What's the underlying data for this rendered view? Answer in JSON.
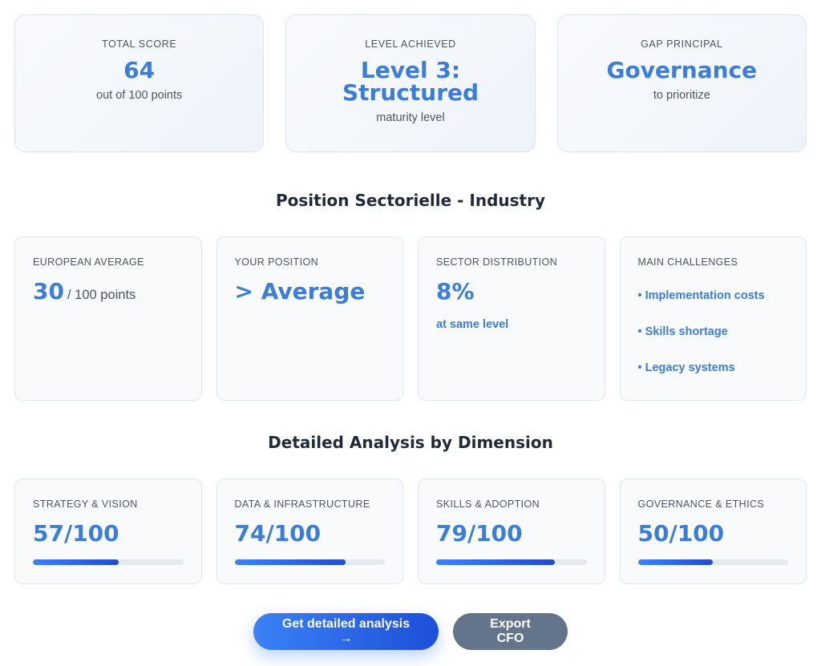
{
  "summary": [
    {
      "label": "TOTAL SCORE",
      "value": "64",
      "sub": "out of 100 points"
    },
    {
      "label": "LEVEL ACHIEVED",
      "value": "Level 3: Structured",
      "sub": "maturity level"
    },
    {
      "label": "GAP PRINCIPAL",
      "value": "Governance",
      "sub": "to prioritize"
    }
  ],
  "sector": {
    "title": "Position Sectorielle - Industry",
    "european_average": {
      "label": "EUROPEAN AVERAGE",
      "value": "30",
      "unit": "/ 100 points"
    },
    "your_position": {
      "label": "YOUR POSITION",
      "value": "> Average"
    },
    "distribution": {
      "label": "SECTOR DISTRIBUTION",
      "value": "8%",
      "note": "at same level"
    },
    "challenges": {
      "label": "MAIN CHALLENGES",
      "items": [
        "• Implementation costs",
        "• Skills shortage",
        "• Legacy systems"
      ]
    }
  },
  "dimensions": {
    "title": "Detailed Analysis by Dimension",
    "items": [
      {
        "label": "STRATEGY & VISION",
        "score_text": "57/100",
        "score": 57
      },
      {
        "label": "DATA & INFRASTRUCTURE",
        "score_text": "74/100",
        "score": 74
      },
      {
        "label": "SKILLS & ADOPTION",
        "score_text": "79/100",
        "score": 79
      },
      {
        "label": "GOVERNANCE & ETHICS",
        "score_text": "50/100",
        "score": 50
      }
    ]
  },
  "actions": {
    "primary": "Get detailed analysis →",
    "secondary": "Export CFO"
  },
  "colors": {
    "accent": "#3b7dd8",
    "progress_start": "#3b82f6",
    "progress_end": "#1e4fc7",
    "secondary_button": "#64748b"
  }
}
